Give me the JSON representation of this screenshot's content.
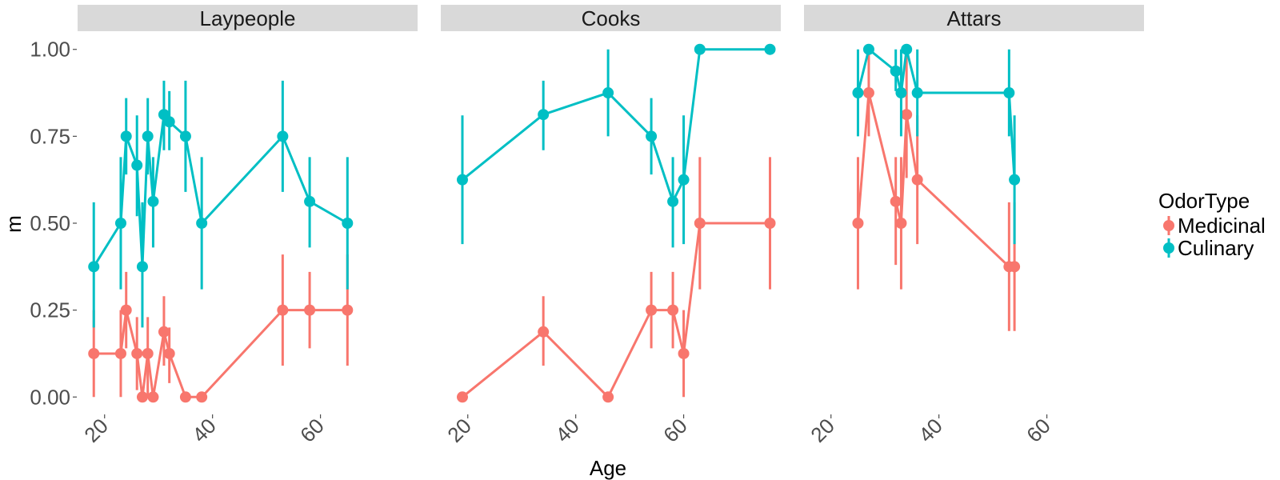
{
  "chart_data": {
    "type": "line",
    "xlabel": "Age",
    "ylabel": "m",
    "xlim": [
      15,
      78
    ],
    "ylim": [
      -0.05,
      1.05
    ],
    "x_ticks": [
      20,
      40,
      60
    ],
    "y_ticks": [
      0,
      0.25,
      0.5,
      0.75,
      1
    ],
    "y_tick_labels": [
      "0.00",
      "0.25",
      "0.50",
      "0.75",
      "1.00"
    ],
    "grid": false,
    "legend": {
      "title": "OdorType",
      "position": "right",
      "entries": [
        {
          "label": "Medicinal",
          "color": "#F8766D"
        },
        {
          "label": "Culinary",
          "color": "#00BFC4"
        }
      ]
    },
    "panels": [
      {
        "title": "Laypeople",
        "series": [
          {
            "name": "Medicinal",
            "color": "#F8766D",
            "points": [
              {
                "x": 18,
                "y": 0.125,
                "lo": 0.0,
                "hi": 0.25
              },
              {
                "x": 23,
                "y": 0.125,
                "lo": 0.0,
                "hi": 0.25
              },
              {
                "x": 24,
                "y": 0.25,
                "lo": 0.14,
                "hi": 0.36
              },
              {
                "x": 26,
                "y": 0.125,
                "lo": 0.02,
                "hi": 0.23
              },
              {
                "x": 27,
                "y": 0.0,
                "lo": 0.0,
                "hi": 0.0
              },
              {
                "x": 28,
                "y": 0.125,
                "lo": 0.0,
                "hi": 0.23
              },
              {
                "x": 29,
                "y": 0.0,
                "lo": 0.0,
                "hi": 0.0
              },
              {
                "x": 31,
                "y": 0.1875,
                "lo": 0.09,
                "hi": 0.29
              },
              {
                "x": 32,
                "y": 0.125,
                "lo": 0.04,
                "hi": 0.2
              },
              {
                "x": 35,
                "y": 0.0,
                "lo": 0.0,
                "hi": 0.0
              },
              {
                "x": 38,
                "y": 0.0,
                "lo": 0.0,
                "hi": 0.0
              },
              {
                "x": 53,
                "y": 0.25,
                "lo": 0.09,
                "hi": 0.41
              },
              {
                "x": 58,
                "y": 0.25,
                "lo": 0.14,
                "hi": 0.36
              },
              {
                "x": 65,
                "y": 0.25,
                "lo": 0.09,
                "hi": 0.41
              }
            ]
          },
          {
            "name": "Culinary",
            "color": "#00BFC4",
            "points": [
              {
                "x": 18,
                "y": 0.375,
                "lo": 0.2,
                "hi": 0.56
              },
              {
                "x": 23,
                "y": 0.5,
                "lo": 0.31,
                "hi": 0.69
              },
              {
                "x": 24,
                "y": 0.75,
                "lo": 0.64,
                "hi": 0.86
              },
              {
                "x": 26,
                "y": 0.6667,
                "lo": 0.52,
                "hi": 0.81
              },
              {
                "x": 27,
                "y": 0.375,
                "lo": 0.2,
                "hi": 0.56
              },
              {
                "x": 28,
                "y": 0.75,
                "lo": 0.64,
                "hi": 0.86
              },
              {
                "x": 29,
                "y": 0.5625,
                "lo": 0.43,
                "hi": 0.69
              },
              {
                "x": 31,
                "y": 0.8125,
                "lo": 0.71,
                "hi": 0.91
              },
              {
                "x": 32,
                "y": 0.7917,
                "lo": 0.71,
                "hi": 0.88
              },
              {
                "x": 35,
                "y": 0.75,
                "lo": 0.59,
                "hi": 0.91
              },
              {
                "x": 38,
                "y": 0.5,
                "lo": 0.31,
                "hi": 0.69
              },
              {
                "x": 53,
                "y": 0.75,
                "lo": 0.59,
                "hi": 0.91
              },
              {
                "x": 58,
                "y": 0.5625,
                "lo": 0.43,
                "hi": 0.69
              },
              {
                "x": 65,
                "y": 0.5,
                "lo": 0.31,
                "hi": 0.69
              }
            ]
          }
        ]
      },
      {
        "title": "Cooks",
        "series": [
          {
            "name": "Medicinal",
            "color": "#F8766D",
            "points": [
              {
                "x": 19,
                "y": 0.0,
                "lo": 0.0,
                "hi": 0.0
              },
              {
                "x": 34,
                "y": 0.1875,
                "lo": 0.09,
                "hi": 0.29
              },
              {
                "x": 46,
                "y": 0.0,
                "lo": 0.0,
                "hi": 0.0
              },
              {
                "x": 54,
                "y": 0.25,
                "lo": 0.14,
                "hi": 0.36
              },
              {
                "x": 58,
                "y": 0.25,
                "lo": 0.14,
                "hi": 0.36
              },
              {
                "x": 60,
                "y": 0.125,
                "lo": 0.0,
                "hi": 0.25
              },
              {
                "x": 63,
                "y": 0.5,
                "lo": 0.31,
                "hi": 0.69
              },
              {
                "x": 76,
                "y": 0.5,
                "lo": 0.31,
                "hi": 0.69
              }
            ]
          },
          {
            "name": "Culinary",
            "color": "#00BFC4",
            "points": [
              {
                "x": 19,
                "y": 0.625,
                "lo": 0.44,
                "hi": 0.81
              },
              {
                "x": 34,
                "y": 0.8125,
                "lo": 0.71,
                "hi": 0.91
              },
              {
                "x": 46,
                "y": 0.875,
                "lo": 0.75,
                "hi": 1.0
              },
              {
                "x": 54,
                "y": 0.75,
                "lo": 0.64,
                "hi": 0.86
              },
              {
                "x": 58,
                "y": 0.5625,
                "lo": 0.43,
                "hi": 0.69
              },
              {
                "x": 60,
                "y": 0.625,
                "lo": 0.44,
                "hi": 0.81
              },
              {
                "x": 63,
                "y": 1.0,
                "lo": 1.0,
                "hi": 1.0
              },
              {
                "x": 76,
                "y": 1.0,
                "lo": 1.0,
                "hi": 1.0
              }
            ]
          }
        ]
      },
      {
        "title": "Attars",
        "series": [
          {
            "name": "Medicinal",
            "color": "#F8766D",
            "points": [
              {
                "x": 25,
                "y": 0.5,
                "lo": 0.31,
                "hi": 0.69
              },
              {
                "x": 27,
                "y": 0.875,
                "lo": 0.75,
                "hi": 1.0
              },
              {
                "x": 32,
                "y": 0.5625,
                "lo": 0.38,
                "hi": 0.69
              },
              {
                "x": 33,
                "y": 0.5,
                "lo": 0.31,
                "hi": 0.69
              },
              {
                "x": 34,
                "y": 0.8125,
                "lo": 0.63,
                "hi": 1.0
              },
              {
                "x": 36,
                "y": 0.625,
                "lo": 0.44,
                "hi": 0.81
              },
              {
                "x": 53,
                "y": 0.375,
                "lo": 0.19,
                "hi": 0.56
              },
              {
                "x": 54,
                "y": 0.375,
                "lo": 0.19,
                "hi": 0.56
              }
            ]
          },
          {
            "name": "Culinary",
            "color": "#00BFC4",
            "points": [
              {
                "x": 25,
                "y": 0.875,
                "lo": 0.75,
                "hi": 1.0
              },
              {
                "x": 27,
                "y": 1.0,
                "lo": 1.0,
                "hi": 1.0
              },
              {
                "x": 32,
                "y": 0.9375,
                "lo": 0.88,
                "hi": 1.0
              },
              {
                "x": 33,
                "y": 0.875,
                "lo": 0.75,
                "hi": 1.0
              },
              {
                "x": 34,
                "y": 1.0,
                "lo": 1.0,
                "hi": 1.0
              },
              {
                "x": 36,
                "y": 0.875,
                "lo": 0.75,
                "hi": 1.0
              },
              {
                "x": 53,
                "y": 0.875,
                "lo": 0.75,
                "hi": 1.0
              },
              {
                "x": 54,
                "y": 0.625,
                "lo": 0.44,
                "hi": 0.81
              }
            ]
          }
        ]
      }
    ]
  }
}
